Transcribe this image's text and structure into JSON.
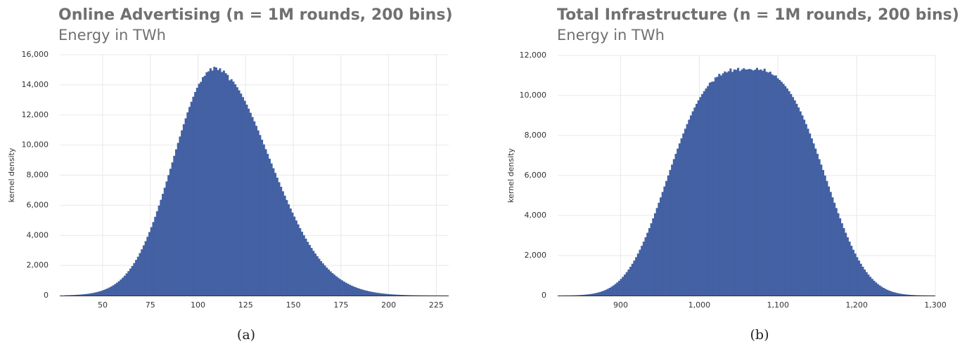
{
  "chart_data": [
    {
      "type": "histogram",
      "title": "Online Advertising (n = 1M rounds, 200 bins)",
      "subtitle": "Energy in TWh",
      "ylabel": "kernel density",
      "caption": "(a)",
      "color": "#4361a3",
      "grid": true,
      "xlim": [
        27.5,
        231.5
      ],
      "xticks": [
        50,
        75,
        100,
        125,
        150,
        175,
        200,
        225
      ],
      "ylim": [
        0,
        16000
      ],
      "yticks": [
        0,
        {
          "value": 2000,
          "label": "2,000"
        },
        {
          "value": 4000,
          "label": "4,000"
        },
        {
          "value": 6000,
          "label": "6,000"
        },
        {
          "value": 8000,
          "label": "8,000"
        },
        {
          "value": 10000,
          "label": "10,000"
        },
        {
          "value": 12000,
          "label": "12,000"
        },
        {
          "value": 14000,
          "label": "14,000"
        },
        {
          "value": 16000,
          "label": "16,000"
        }
      ],
      "bins": [
        30,
        31,
        32,
        33,
        34,
        35,
        36,
        37,
        38,
        39,
        40,
        41,
        42,
        43,
        44,
        45,
        46,
        47,
        48,
        49,
        50,
        51,
        52,
        53,
        54,
        55,
        56,
        57,
        58,
        59,
        60,
        61,
        62,
        63,
        64,
        65,
        66,
        67,
        68,
        69,
        70,
        71,
        72,
        73,
        74,
        75,
        76,
        77,
        78,
        79,
        80,
        81,
        82,
        83,
        84,
        85,
        86,
        87,
        88,
        89,
        90,
        91,
        92,
        93,
        94,
        95,
        96,
        97,
        98,
        99,
        100,
        101,
        102,
        103,
        104,
        105,
        106,
        107,
        108,
        109,
        110,
        111,
        112,
        113,
        114,
        115,
        116,
        117,
        118,
        119,
        120,
        121,
        122,
        123,
        124,
        125,
        126,
        127,
        128,
        129,
        130,
        131,
        132,
        133,
        134,
        135,
        136,
        137,
        138,
        139,
        140,
        141,
        142,
        143,
        144,
        145,
        146,
        147,
        148,
        149,
        150,
        151,
        152,
        153,
        154,
        155,
        156,
        157,
        158,
        159,
        160,
        161,
        162,
        163,
        164,
        165,
        166,
        167,
        168,
        169,
        170,
        171,
        172,
        173,
        174,
        175,
        176,
        177,
        178,
        179,
        180,
        181,
        182,
        183,
        184,
        185,
        186,
        187,
        188,
        189,
        190,
        191,
        192,
        193,
        194,
        195,
        196,
        197,
        198,
        199,
        200,
        201,
        202,
        203,
        204,
        205,
        206,
        207,
        208,
        209,
        210,
        211,
        212,
        213,
        214,
        215,
        216,
        217,
        218,
        219,
        220,
        221,
        222,
        223,
        224,
        225,
        226,
        227,
        228,
        229,
        230
      ],
      "values": [
        18,
        22,
        26,
        31,
        36,
        42,
        50,
        58,
        68,
        79,
        92,
        107,
        124,
        143,
        165,
        189,
        218,
        250,
        285,
        325,
        370,
        421,
        475,
        536,
        604,
        680,
        767,
        856,
        956,
        1067,
        1191,
        1317,
        1470,
        1623,
        1794,
        1963,
        2159,
        2371,
        2582,
        2824,
        3073,
        3337,
        3618,
        3911,
        4220,
        4545,
        4883,
        5232,
        5602,
        5980,
        6365,
        6759,
        7168,
        7580,
        8003,
        8426,
        8849,
        9287,
        9715,
        10143,
        10567,
        10978,
        11385,
        11778,
        12171,
        12533,
        12880,
        13213,
        13530,
        13810,
        14073,
        14200,
        14511,
        14600,
        14836,
        14900,
        15100,
        14950,
        15200,
        15150,
        14980,
        15100,
        14850,
        14950,
        14776,
        14661,
        14300,
        14380,
        14216,
        14036,
        13843,
        13637,
        13418,
        13187,
        12943,
        12687,
        12421,
        12146,
        11863,
        11574,
        11278,
        10975,
        10667,
        10357,
        10043,
        9727,
        9413,
        9094,
        8781,
        8463,
        8150,
        7836,
        7533,
        7230,
        6930,
        6637,
        6347,
        6064,
        5786,
        5515,
        5248,
        4985,
        4730,
        4480,
        4241,
        4009,
        3784,
        3570,
        3363,
        3165,
        2973,
        2792,
        2617,
        2450,
        2292,
        2139,
        1994,
        1858,
        1730,
        1608,
        1493,
        1385,
        1282,
        1186,
        1095,
        1011,
        932,
        858,
        789,
        725,
        665,
        609,
        557,
        509,
        465,
        424,
        386,
        351,
        319,
        289,
        262,
        237,
        214,
        194,
        175,
        157,
        142,
        127,
        114,
        103,
        92,
        82,
        73,
        65,
        58,
        52,
        46,
        41,
        36,
        32,
        29,
        25,
        22,
        20,
        17,
        15,
        13,
        12,
        10,
        9,
        8,
        7,
        6,
        5,
        5,
        4,
        4,
        3,
        3,
        2
      ]
    },
    {
      "type": "histogram",
      "title": "Total Infrastructure (n = 1M rounds, 200 bins)",
      "subtitle": "Energy in TWh",
      "ylabel": "kernel density",
      "caption": "(b)",
      "color": "#4361a3",
      "grid": true,
      "xlim": [
        820,
        1300
      ],
      "xticks": [
        900,
        {
          "value": 1000,
          "label": "1,000"
        },
        {
          "value": 1100,
          "label": "1,100"
        },
        {
          "value": 1200,
          "label": "1,200"
        },
        {
          "value": 1300,
          "label": "1,300"
        }
      ],
      "ylim": [
        0,
        12000
      ],
      "yticks": [
        0,
        {
          "value": 2000,
          "label": "2,000"
        },
        {
          "value": 4000,
          "label": "4,000"
        },
        {
          "value": 6000,
          "label": "6,000"
        },
        {
          "value": 8000,
          "label": "8,000"
        },
        {
          "value": 10000,
          "label": "10,000"
        },
        {
          "value": 12000,
          "label": "12,000"
        }
      ],
      "bins": [
        820,
        822.4,
        824.8,
        827.2,
        829.6,
        832,
        834.4,
        836.8,
        839.2,
        841.6,
        844,
        846.4,
        848.8,
        851.2,
        853.6,
        856,
        858.4,
        860.8,
        863.2,
        865.6,
        868,
        870.4,
        872.8,
        875.2,
        877.6,
        880,
        882.4,
        884.8,
        887.2,
        889.6,
        892,
        894.4,
        896.8,
        899.2,
        901.6,
        904,
        906.4,
        908.8,
        911.2,
        913.6,
        916,
        918.4,
        920.8,
        923.2,
        925.6,
        928,
        930.4,
        932.8,
        935.2,
        937.6,
        940,
        942.4,
        944.8,
        947.2,
        949.6,
        952,
        954.4,
        956.8,
        959.2,
        961.6,
        964,
        966.4,
        968.8,
        971.2,
        973.6,
        976,
        978.4,
        980.8,
        983.2,
        985.6,
        988,
        990.4,
        992.8,
        995.2,
        997.6,
        1000,
        1002.4,
        1004.8,
        1007.2,
        1009.6,
        1012,
        1014.4,
        1016.8,
        1019.2,
        1021.6,
        1024,
        1026.4,
        1028.8,
        1031.2,
        1033.6,
        1036,
        1038.4,
        1040.8,
        1043.2,
        1045.6,
        1048,
        1050.4,
        1052.8,
        1055.2,
        1057.6,
        1060,
        1062.4,
        1064.8,
        1067.2,
        1069.6,
        1072,
        1074.4,
        1076.8,
        1079.2,
        1081.6,
        1084,
        1086.4,
        1088.8,
        1091.2,
        1093.6,
        1096,
        1098.4,
        1100.8,
        1103.2,
        1105.6,
        1108,
        1110.4,
        1112.8,
        1115.2,
        1117.6,
        1120,
        1122.4,
        1124.8,
        1127.2,
        1129.6,
        1132,
        1134.4,
        1136.8,
        1139.2,
        1141.6,
        1144,
        1146.4,
        1148.8,
        1151.2,
        1153.6,
        1156,
        1158.4,
        1160.8,
        1163.2,
        1165.6,
        1168,
        1170.4,
        1172.8,
        1175.2,
        1177.6,
        1180,
        1182.4,
        1184.8,
        1187.2,
        1189.6,
        1192,
        1194.4,
        1196.8,
        1199.2,
        1201.6,
        1204,
        1206.4,
        1208.8,
        1211.2,
        1213.6,
        1216,
        1218.4,
        1220.8,
        1223.2,
        1225.6,
        1228,
        1230.4,
        1232.8,
        1235.2,
        1237.6,
        1240,
        1242.4,
        1244.8,
        1247.2,
        1249.6,
        1252,
        1254.4,
        1256.8,
        1259.2,
        1261.6,
        1264,
        1266.4,
        1268.8,
        1271.2,
        1273.6,
        1276,
        1278.4,
        1280.8,
        1283.2,
        1285.6,
        1288,
        1290.4,
        1292.8,
        1295.2,
        1297.6,
        1300
      ],
      "values": [
        2,
        2,
        3,
        4,
        5,
        6,
        8,
        10,
        13,
        16,
        20,
        24,
        30,
        37,
        44,
        54,
        65,
        78,
        93,
        111,
        132,
        155,
        182,
        214,
        249,
        289,
        335,
        386,
        443,
        507,
        578,
        655,
        741,
        835,
        938,
        1049,
        1170,
        1300,
        1440,
        1590,
        1750,
        1920,
        2100,
        2289,
        2488,
        2696,
        2913,
        3139,
        3372,
        3613,
        3861,
        4115,
        4375,
        4639,
        4908,
        5179,
        5452,
        5726,
        6001,
        6276,
        6548,
        6818,
        7085,
        7347,
        7605,
        7856,
        8101,
        8339,
        8570,
        8791,
        9004,
        9207,
        9401,
        9585,
        9758,
        9920,
        10073,
        10215,
        10348,
        10470,
        10640,
        10684,
        10700,
        10900,
        10933,
        11080,
        11000,
        11106,
        11200,
        11150,
        11215,
        11350,
        11180,
        11300,
        11283,
        11380,
        11220,
        11298,
        11360,
        11300,
        11300,
        11330,
        11298,
        11250,
        11291,
        11380,
        11273,
        11300,
        11239,
        11340,
        11185,
        11149,
        11190,
        11056,
        10999,
        11000,
        10859,
        10776,
        10684,
        10582,
        10470,
        10348,
        10215,
        10073,
        9920,
        9758,
        9585,
        9401,
        9207,
        9004,
        8791,
        8570,
        8339,
        8101,
        7856,
        7605,
        7347,
        7085,
        6818,
        6548,
        6276,
        6001,
        5726,
        5452,
        5179,
        4908,
        4639,
        4375,
        4115,
        3861,
        3613,
        3372,
        3139,
        2913,
        2696,
        2488,
        2289,
        2100,
        1920,
        1750,
        1590,
        1440,
        1300,
        1170,
        1049,
        938,
        835,
        741,
        655,
        578,
        507,
        443,
        386,
        335,
        289,
        249,
        214,
        182,
        155,
        132,
        111,
        93,
        78,
        65,
        54,
        44,
        37,
        30,
        24,
        20,
        16,
        13,
        10,
        8,
        6,
        5,
        4,
        3,
        2,
        2
      ]
    }
  ]
}
